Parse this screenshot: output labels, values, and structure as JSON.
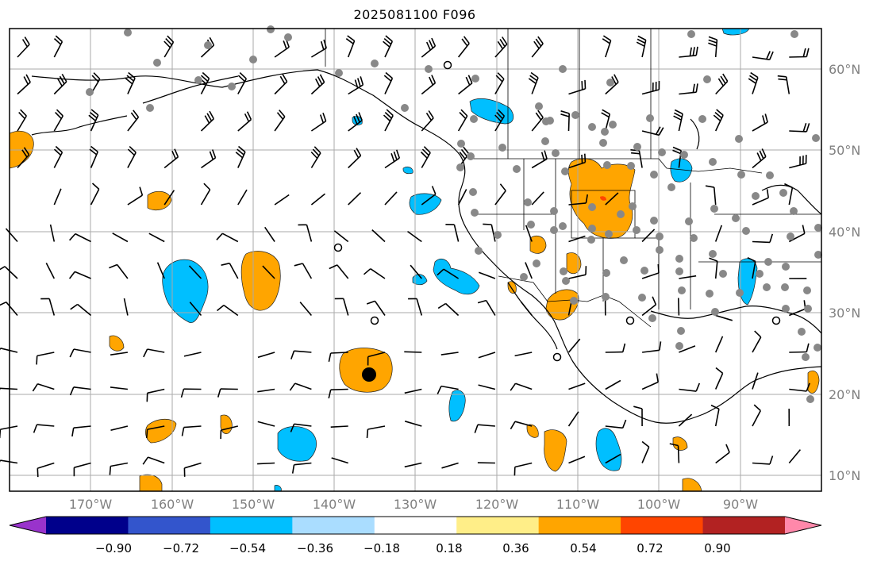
{
  "title": "2025081100 F096",
  "lat_labels": [
    "60°N",
    "50°N",
    "40°N",
    "30°N",
    "20°N",
    "10°N"
  ],
  "lon_labels": [
    "170°W",
    "160°W",
    "150°W",
    "140°W",
    "130°W",
    "120°W",
    "110°W",
    "100°W",
    "90°W"
  ],
  "colorbar": {
    "ticks": [
      "−0.90",
      "−0.72",
      "−0.54",
      "−0.36",
      "−0.18",
      "0.18",
      "0.36",
      "0.54",
      "0.72",
      "0.90"
    ],
    "colors": [
      "#9933cc",
      "#00008b",
      "#3355cc",
      "#00bfff",
      "#aaddff",
      "#ffffff",
      "#ffee88",
      "#ffa500",
      "#ff4500",
      "#b22222",
      "#ff88aa"
    ]
  },
  "colors": {
    "positive": "#ffa500",
    "negative": "#00bfff",
    "strong_positive": "#ff4500",
    "stations": "#888888",
    "gridlines": "#aaaaaa",
    "labels": "#808080"
  },
  "map_elements": {
    "projection": "equirectangular",
    "extent_lon": [
      -180,
      -80
    ],
    "extent_lat": [
      8,
      65
    ],
    "gridlines": true,
    "wind_barbs": true,
    "station_markers": true,
    "highlight_marker": "black-filled-circle"
  }
}
